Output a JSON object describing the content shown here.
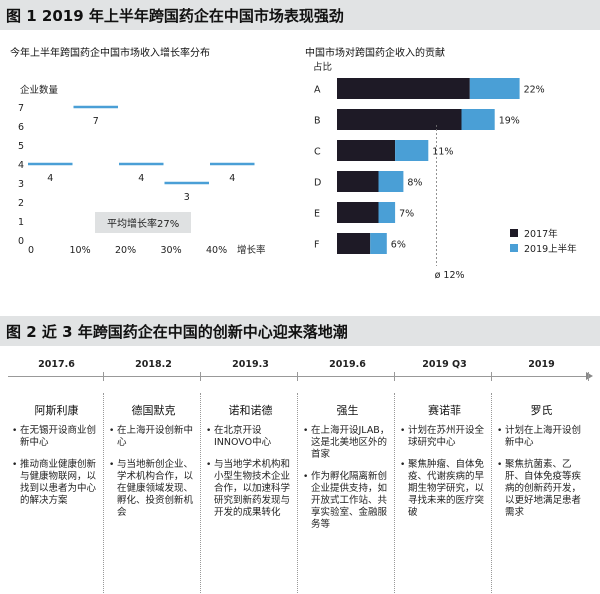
{
  "fig1": {
    "title": "图 1  2019 年上半年跨国药企在中国市场表现强劲"
  },
  "chart_data": [
    {
      "type": "line",
      "title": "今年上半年跨国药企中国市场收入增长率分布",
      "ylabel": "企业数量",
      "xlabel": "增长率",
      "y_ticks": [
        "0",
        "1",
        "2",
        "3",
        "4",
        "5",
        "6",
        "7"
      ],
      "x_ticks": [
        "0",
        "10%",
        "20%",
        "30%",
        "40%"
      ],
      "ylim": [
        0,
        7
      ],
      "xlim": [
        0,
        50
      ],
      "bins": [
        {
          "x_start": 0,
          "x_end": 10,
          "count": 4,
          "label": "4"
        },
        {
          "x_start": 10,
          "x_end": 20,
          "count": 7,
          "label": "7"
        },
        {
          "x_start": 20,
          "x_end": 30,
          "count": 4,
          "label": "4"
        },
        {
          "x_start": 30,
          "x_end": 40,
          "count": 3,
          "label": "3"
        },
        {
          "x_start": 40,
          "x_end": 50,
          "count": 4,
          "label": "4"
        }
      ],
      "annotation": "平均增长率27%",
      "color": "#4a9fd6"
    },
    {
      "type": "bar",
      "title": "中国市场对跨国药企收入的贡献",
      "ylabel": "占比",
      "categories": [
        "A",
        "B",
        "C",
        "D",
        "E",
        "F"
      ],
      "series": [
        {
          "name": "2017年",
          "values": [
            16,
            15,
            7,
            5,
            5,
            4
          ],
          "color": "#1e1a26"
        },
        {
          "name": "2019上半年",
          "values": [
            22,
            19,
            11,
            8,
            7,
            6
          ],
          "color": "#4a9fd6"
        }
      ],
      "value_labels": [
        "22%",
        "19%",
        "11%",
        "8%",
        "7%",
        "6%"
      ],
      "xlim": [
        0,
        25
      ],
      "average_label": "ø 12%",
      "average_value": 12
    }
  ],
  "fig2": {
    "title": "图 2  近 3 年跨国药企在中国的创新中心迎来落地潮",
    "timeline": [
      {
        "year": "2017.6",
        "company": "阿斯利康",
        "bullets": [
          "在无锡开设商业创新中心",
          "推动商业健康创新与健康物联网，以找到以患者为中心的解决方案"
        ]
      },
      {
        "year": "2018.2",
        "company": "德国默克",
        "bullets": [
          "在上海开设创新中心",
          "与当地新创企业、学术机构合作，以在健康领域发现、孵化、投资创新机会"
        ]
      },
      {
        "year": "2019.3",
        "company": "诺和诺德",
        "bullets": [
          "在北京开设INNOVO中心",
          "与当地学术机构和小型生物技术企业合作，以加速科学研究到新药发现与开发的成果转化"
        ]
      },
      {
        "year": "2019.6",
        "company": "强生",
        "bullets": [
          "在上海开设JLAB，这是北美地区外的首家",
          "作为孵化隔离新创企业提供支持，如开放式工作站、共享实验室、金融服务等"
        ]
      },
      {
        "year": "2019 Q3",
        "company": "赛诺菲",
        "bullets": [
          "计划在苏州开设全球研究中心",
          "聚焦肿瘤、自体免疫、代谢疾病的早期生物学研究，以寻找未来的医疗突破"
        ]
      },
      {
        "year": "2019",
        "company": "罗氏",
        "bullets": [
          "计划在上海开设创新中心",
          "聚焦抗菌素、乙肝、自体免疫等疾病的创新药开发，以更好地满足患者需求"
        ]
      }
    ]
  }
}
